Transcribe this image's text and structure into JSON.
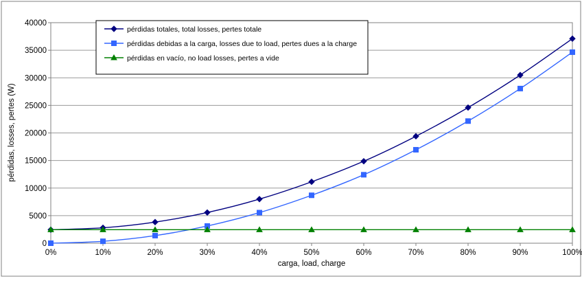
{
  "chart_data": {
    "type": "line",
    "title": "",
    "xlabel": "carga, load, charge",
    "ylabel": "pérdidas, losses, pertes (W)",
    "x": [
      "0%",
      "10%",
      "20%",
      "30%",
      "40%",
      "50%",
      "60%",
      "70%",
      "80%",
      "90%",
      "100%"
    ],
    "ylim": [
      0,
      40000
    ],
    "yticks": [
      0,
      5000,
      10000,
      15000,
      20000,
      25000,
      30000,
      35000,
      40000
    ],
    "grid": true,
    "legend_position": "top",
    "series": [
      {
        "name": "pérdidas totales, total losses, pertes totale",
        "color": "#000080",
        "marker": "diamond",
        "values": [
          2450,
          2800,
          3830,
          5570,
          8000,
          11140,
          14870,
          19400,
          24600,
          30500,
          37100
        ]
      },
      {
        "name": "pérdidas debidas a la carga, losses due to load, pertes dues a la charge",
        "color": "#3366ff",
        "marker": "square",
        "values": [
          0,
          350,
          1380,
          3120,
          5550,
          8690,
          12420,
          16950,
          22150,
          28050,
          34650
        ]
      },
      {
        "name": "pérdidas en vacío, no load losses, pertes a vide",
        "color": "#008000",
        "marker": "triangle",
        "values": [
          2450,
          2450,
          2450,
          2450,
          2450,
          2450,
          2450,
          2450,
          2450,
          2450,
          2450
        ]
      }
    ]
  }
}
